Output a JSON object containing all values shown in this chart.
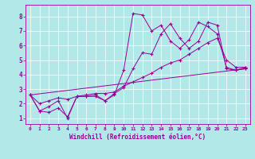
{
  "xlabel": "Windchill (Refroidissement éolien,°C)",
  "bg_color": "#b2e8e8",
  "grid_color": "#ffffff",
  "line_color": "#990099",
  "spine_color": "#990099",
  "xlim": [
    -0.5,
    23.5
  ],
  "ylim": [
    0.6,
    8.8
  ],
  "yticks": [
    1,
    2,
    3,
    4,
    5,
    6,
    7,
    8
  ],
  "xticks": [
    0,
    1,
    2,
    3,
    4,
    5,
    6,
    7,
    8,
    9,
    10,
    11,
    12,
    13,
    14,
    15,
    16,
    17,
    18,
    19,
    20,
    21,
    22,
    23
  ],
  "lines": [
    {
      "x": [
        0,
        1,
        2,
        3,
        4,
        5,
        6,
        7,
        8,
        9,
        10,
        11,
        12,
        13,
        14,
        15,
        16,
        17,
        18,
        19,
        20,
        21,
        22,
        23
      ],
      "y": [
        2.6,
        1.5,
        1.8,
        2.2,
        1.0,
        2.5,
        2.5,
        2.5,
        2.2,
        2.6,
        4.3,
        8.2,
        8.1,
        7.0,
        7.4,
        6.3,
        5.8,
        6.4,
        7.6,
        7.3,
        6.8,
        4.5,
        4.3,
        4.4
      ]
    },
    {
      "x": [
        0,
        1,
        2,
        3,
        4,
        5,
        6,
        7,
        8,
        9,
        10,
        11,
        12,
        13,
        14,
        15,
        16,
        17,
        18,
        19,
        20,
        21,
        22,
        23
      ],
      "y": [
        2.6,
        1.5,
        1.4,
        1.7,
        1.1,
        2.5,
        2.5,
        2.6,
        2.2,
        2.7,
        3.1,
        4.4,
        5.5,
        5.4,
        6.8,
        7.5,
        6.5,
        5.8,
        6.3,
        7.6,
        7.4,
        4.4,
        4.3,
        4.5
      ]
    },
    {
      "x": [
        0,
        1,
        2,
        3,
        4,
        5,
        6,
        7,
        8,
        9,
        10,
        11,
        12,
        13,
        14,
        15,
        16,
        17,
        18,
        19,
        20,
        21,
        22,
        23
      ],
      "y": [
        2.6,
        2.0,
        2.2,
        2.4,
        2.3,
        2.5,
        2.6,
        2.7,
        2.7,
        2.8,
        3.2,
        3.5,
        3.8,
        4.1,
        4.5,
        4.8,
        5.0,
        5.4,
        5.8,
        6.2,
        6.5,
        5.0,
        4.5,
        4.5
      ]
    },
    {
      "x": [
        0,
        23
      ],
      "y": [
        2.6,
        4.4
      ]
    }
  ]
}
